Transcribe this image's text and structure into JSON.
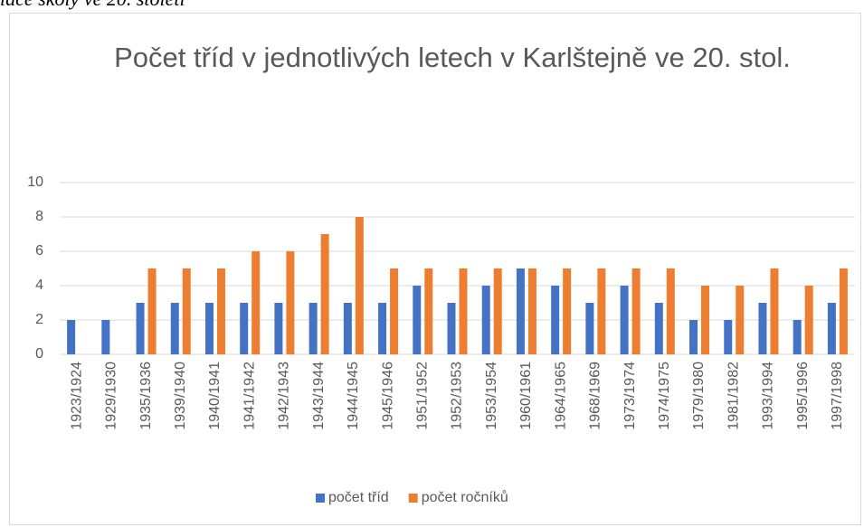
{
  "caption": "lace školy ve 20. století",
  "chart_data": {
    "type": "bar",
    "title": "Počet tříd v jednotlivých letech v Karlštejně ve 20. stol.",
    "categories": [
      "1923/1924",
      "1929/1930",
      "1935/1936",
      "1939/1940",
      "1940/1941",
      "1941/1942",
      "1942/1943",
      "1943/1944",
      "1944/1945",
      "1945/1946",
      "1951/1952",
      "1952/1953",
      "1953/1954",
      "1960/1961",
      "1964/1965",
      "1968/1969",
      "1973/1974",
      "1974/1975",
      "1979/1980",
      "1981/1982",
      "1993/1994",
      "1995/1996",
      "1997/1998"
    ],
    "series": [
      {
        "name": "počet tříd",
        "color": "#4472c4",
        "values": [
          2,
          2,
          3,
          3,
          3,
          3,
          3,
          3,
          3,
          3,
          4,
          3,
          4,
          5,
          4,
          3,
          4,
          3,
          2,
          2,
          3,
          2,
          3
        ]
      },
      {
        "name": "počet ročníků",
        "color": "#ed7d31",
        "values": [
          null,
          null,
          5,
          5,
          5,
          6,
          6,
          7,
          8,
          5,
          5,
          5,
          5,
          5,
          5,
          5,
          5,
          5,
          4,
          4,
          5,
          4,
          5
        ]
      }
    ],
    "ylim": [
      0,
      10
    ],
    "yticks": [
      0,
      2,
      4,
      6,
      8,
      10
    ],
    "grid": true,
    "legend": "bottom"
  }
}
